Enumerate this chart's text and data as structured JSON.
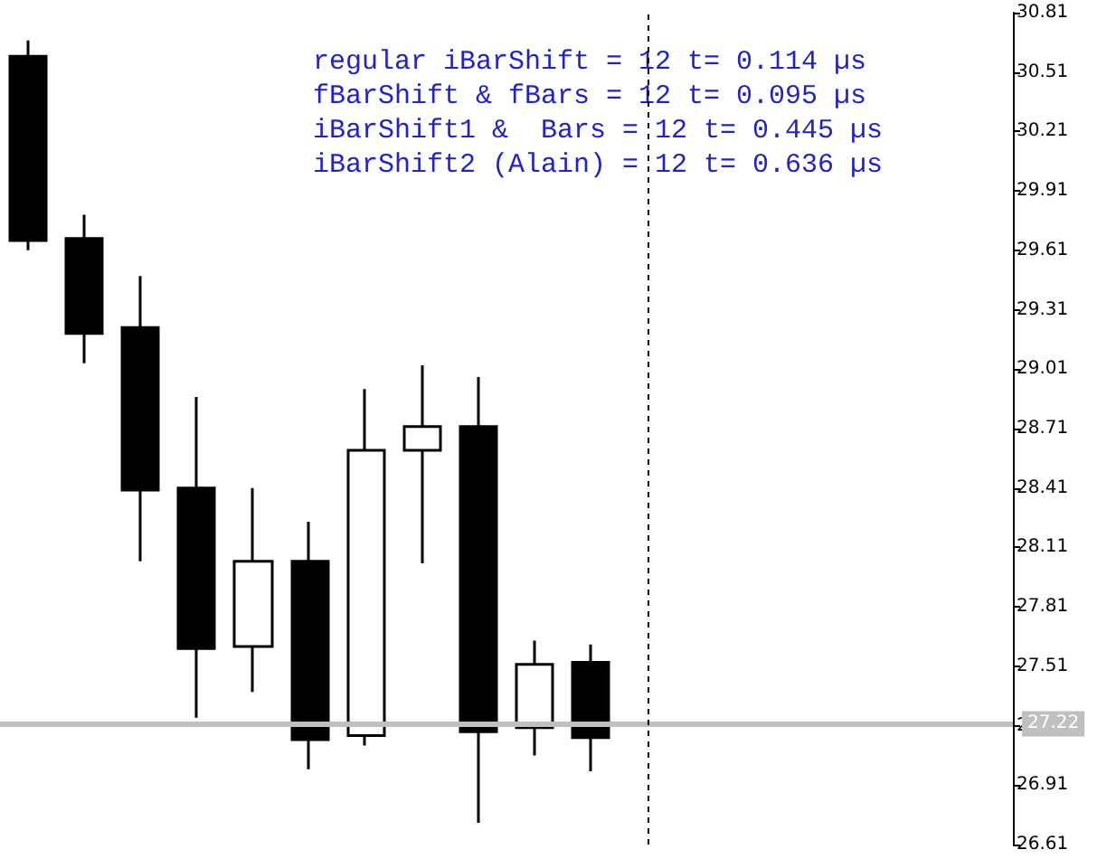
{
  "chart_data": {
    "type": "candlestick",
    "categories": [
      null,
      null,
      null,
      null,
      null,
      null,
      null,
      null,
      null,
      null,
      null,
      null,
      null,
      null,
      null,
      null,
      null,
      null
    ],
    "ohlc": [
      [
        30.59,
        30.67,
        29.61,
        29.66
      ],
      [
        29.67,
        29.79,
        29.04,
        29.19
      ],
      [
        29.22,
        29.48,
        28.04,
        28.4
      ],
      [
        28.41,
        28.87,
        27.25,
        27.6
      ],
      [
        27.61,
        28.41,
        27.38,
        28.04
      ],
      [
        28.04,
        28.24,
        26.99,
        27.14
      ],
      [
        27.16,
        28.91,
        27.11,
        28.6
      ],
      [
        28.6,
        29.03,
        28.03,
        28.72
      ],
      [
        28.72,
        28.97,
        26.72,
        27.18
      ],
      [
        27.2,
        27.64,
        27.06,
        27.52
      ],
      [
        27.53,
        27.62,
        26.98,
        27.15
      ],
      null,
      null,
      null,
      null,
      null,
      null,
      null
    ],
    "ylim": [
      26.61,
      30.81
    ],
    "yticks": [
      26.61,
      26.91,
      27.21,
      27.51,
      27.81,
      28.11,
      28.41,
      28.71,
      29.01,
      29.31,
      29.61,
      29.91,
      30.21,
      30.51,
      30.81
    ],
    "tick_labels": "y",
    "grid": false,
    "ref_lines": [
      {
        "axis": "y",
        "value": 27.22,
        "label": "27.22",
        "color": "#c0c0c0"
      }
    ],
    "annotations": [
      "regular iBarShift = 12 t= 0.114 µs",
      "fBarShift & fBars = 12 t= 0.095 µs",
      "iBarShift1 &  Bars = 12 t= 0.445 µs",
      "iBarShift2 (Alain) = 12 t= 0.636 µs"
    ]
  }
}
